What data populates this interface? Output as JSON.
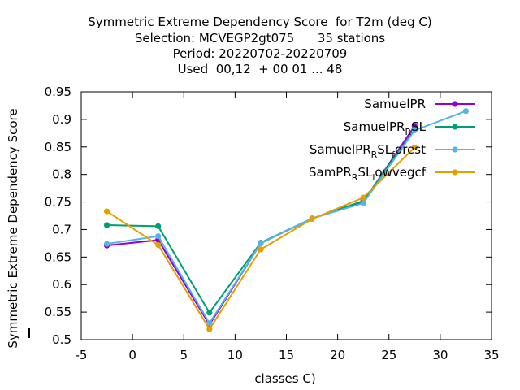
{
  "chart_data": {
    "type": "line",
    "title_lines": [
      "Symmetric Extreme Dependency Score  for T2m (deg C)",
      "Selection: MCVEGP2gt075      35 stations",
      "Period: 20220702-20220709",
      "Used  00,12  + 00 01 ... 48"
    ],
    "xlabel": "classes C)",
    "ylabel": "Symmetric Extreme Dependency Score",
    "xlim": [
      -5,
      35
    ],
    "ylim": [
      0.5,
      0.95
    ],
    "xticks": [
      -5,
      0,
      5,
      10,
      15,
      20,
      25,
      30,
      35
    ],
    "yticks": [
      0.5,
      0.55,
      0.6,
      0.65,
      0.7,
      0.75,
      0.8,
      0.85,
      0.9,
      0.95
    ],
    "legend_position": "top-right",
    "series": [
      {
        "name": "SamuelPR",
        "legend_parts": [
          [
            "SamuelPR",
            ""
          ]
        ],
        "color": "#9400d3",
        "x": [
          -2.5,
          2.5,
          7.5,
          12.5,
          17.5,
          22.5,
          27.5
        ],
        "y": [
          0.671,
          0.681,
          0.527,
          0.675,
          0.72,
          0.75,
          0.888
        ]
      },
      {
        "name": "SamuelPR_RSL",
        "legend_parts": [
          [
            "SamuelPR",
            ""
          ],
          [
            "R",
            "sub"
          ],
          [
            "SL",
            ""
          ]
        ],
        "color": "#009e73",
        "x": [
          -2.5,
          2.5,
          7.5,
          12.5,
          17.5,
          22.5,
          27.5
        ],
        "y": [
          0.708,
          0.706,
          0.549,
          0.676,
          0.72,
          0.752,
          0.882
        ]
      },
      {
        "name": "SamuelPR_RSL_forest",
        "legend_parts": [
          [
            "SamuelPR",
            ""
          ],
          [
            "R",
            "sub"
          ],
          [
            "SL",
            ""
          ],
          [
            "f",
            "sub"
          ],
          [
            "orest",
            ""
          ]
        ],
        "color": "#56b4e9",
        "x": [
          -2.5,
          2.5,
          7.5,
          12.5,
          17.5,
          22.5,
          27.5,
          32.5
        ],
        "y": [
          0.674,
          0.688,
          0.53,
          0.675,
          0.72,
          0.748,
          0.88,
          0.915
        ]
      },
      {
        "name": "SamPR_RSL_lowvegcf",
        "legend_parts": [
          [
            "SamPR",
            ""
          ],
          [
            "R",
            "sub"
          ],
          [
            "SL",
            ""
          ],
          [
            "l",
            "sub"
          ],
          [
            "owvegcf",
            ""
          ]
        ],
        "color": "#e69f00",
        "x": [
          -2.5,
          2.5,
          7.5,
          12.5,
          17.5,
          22.5,
          27.5
        ],
        "y": [
          0.733,
          0.672,
          0.519,
          0.664,
          0.719,
          0.758,
          0.849
        ]
      }
    ]
  }
}
